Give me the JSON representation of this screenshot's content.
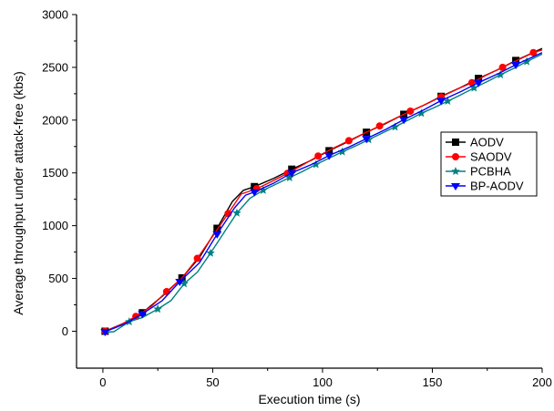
{
  "chart_data": {
    "type": "line",
    "title": "",
    "xlabel": "Execution time (s)",
    "ylabel": "Average throughput under attack-free (kbs)",
    "xlim": [
      -12,
      200
    ],
    "ylim": [
      -350,
      3000
    ],
    "xticks": [
      0,
      50,
      100,
      150,
      200
    ],
    "yticks": [
      0,
      500,
      1000,
      1500,
      2000,
      2500,
      3000
    ],
    "grid": false,
    "legend_position": "right",
    "series": [
      {
        "name": "AODV",
        "color": "#000000",
        "marker": "square",
        "points": [
          [
            1,
            0
          ],
          [
            18,
            175
          ],
          [
            36,
            505
          ],
          [
            52,
            975
          ],
          [
            69,
            1370
          ],
          [
            86,
            1535
          ],
          [
            103,
            1710
          ],
          [
            120,
            1885
          ],
          [
            137,
            2055
          ],
          [
            154,
            2225
          ],
          [
            171,
            2395
          ],
          [
            188,
            2565
          ]
        ],
        "line": [
          [
            1,
            0
          ],
          [
            10,
            80
          ],
          [
            18,
            175
          ],
          [
            27,
            330
          ],
          [
            36,
            505
          ],
          [
            44,
            700
          ],
          [
            52,
            975
          ],
          [
            59,
            1230
          ],
          [
            64,
            1335
          ],
          [
            69,
            1370
          ],
          [
            78,
            1450
          ],
          [
            86,
            1535
          ],
          [
            95,
            1620
          ],
          [
            103,
            1710
          ],
          [
            112,
            1800
          ],
          [
            120,
            1885
          ],
          [
            129,
            1970
          ],
          [
            137,
            2055
          ],
          [
            146,
            2140
          ],
          [
            154,
            2225
          ],
          [
            163,
            2310
          ],
          [
            171,
            2395
          ],
          [
            180,
            2480
          ],
          [
            188,
            2565
          ],
          [
            200,
            2680
          ]
        ]
      },
      {
        "name": "SAODV",
        "color": "#ff0000",
        "marker": "circle",
        "points": [
          [
            1,
            0
          ],
          [
            15,
            140
          ],
          [
            29,
            375
          ],
          [
            43,
            690
          ],
          [
            57,
            1115
          ],
          [
            70,
            1350
          ],
          [
            84,
            1495
          ],
          [
            98,
            1660
          ],
          [
            112,
            1805
          ],
          [
            126,
            1945
          ],
          [
            140,
            2085
          ],
          [
            154,
            2220
          ],
          [
            168,
            2355
          ],
          [
            182,
            2500
          ],
          [
            196,
            2640
          ]
        ],
        "line": [
          [
            1,
            0
          ],
          [
            8,
            60
          ],
          [
            15,
            140
          ],
          [
            22,
            235
          ],
          [
            29,
            375
          ],
          [
            36,
            505
          ],
          [
            43,
            690
          ],
          [
            50,
            900
          ],
          [
            57,
            1115
          ],
          [
            63,
            1300
          ],
          [
            70,
            1350
          ],
          [
            77,
            1420
          ],
          [
            84,
            1495
          ],
          [
            91,
            1575
          ],
          [
            98,
            1660
          ],
          [
            105,
            1735
          ],
          [
            112,
            1805
          ],
          [
            119,
            1875
          ],
          [
            126,
            1945
          ],
          [
            133,
            2015
          ],
          [
            140,
            2085
          ],
          [
            147,
            2150
          ],
          [
            154,
            2220
          ],
          [
            161,
            2290
          ],
          [
            168,
            2355
          ],
          [
            175,
            2430
          ],
          [
            182,
            2500
          ],
          [
            189,
            2570
          ],
          [
            196,
            2640
          ],
          [
            200,
            2665
          ]
        ]
      },
      {
        "name": "PCBHA",
        "color": "#008080",
        "marker": "star",
        "points": [
          [
            12,
            90
          ],
          [
            25,
            210
          ],
          [
            37,
            450
          ],
          [
            49,
            740
          ],
          [
            61,
            1120
          ],
          [
            73,
            1335
          ],
          [
            85,
            1455
          ],
          [
            97,
            1580
          ],
          [
            109,
            1700
          ],
          [
            121,
            1815
          ],
          [
            133,
            1935
          ],
          [
            145,
            2065
          ],
          [
            157,
            2180
          ],
          [
            169,
            2305
          ],
          [
            181,
            2430
          ],
          [
            193,
            2555
          ]
        ],
        "line": [
          [
            1,
            -10
          ],
          [
            5,
            -5
          ],
          [
            12,
            90
          ],
          [
            18,
            130
          ],
          [
            25,
            210
          ],
          [
            31,
            290
          ],
          [
            37,
            450
          ],
          [
            43,
            560
          ],
          [
            49,
            740
          ],
          [
            55,
            930
          ],
          [
            61,
            1120
          ],
          [
            67,
            1260
          ],
          [
            73,
            1335
          ],
          [
            79,
            1395
          ],
          [
            85,
            1455
          ],
          [
            91,
            1515
          ],
          [
            97,
            1580
          ],
          [
            103,
            1640
          ],
          [
            109,
            1700
          ],
          [
            115,
            1755
          ],
          [
            121,
            1815
          ],
          [
            127,
            1875
          ],
          [
            133,
            1935
          ],
          [
            139,
            2000
          ],
          [
            145,
            2065
          ],
          [
            151,
            2120
          ],
          [
            157,
            2180
          ],
          [
            163,
            2240
          ],
          [
            169,
            2305
          ],
          [
            175,
            2365
          ],
          [
            181,
            2430
          ],
          [
            187,
            2490
          ],
          [
            193,
            2555
          ],
          [
            200,
            2625
          ]
        ]
      },
      {
        "name": "BP-AODV",
        "color": "#0000ff",
        "marker": "triangle-down",
        "points": [
          [
            1,
            -5
          ],
          [
            18,
            165
          ],
          [
            35,
            470
          ],
          [
            52,
            920
          ],
          [
            69,
            1320
          ],
          [
            86,
            1500
          ],
          [
            103,
            1665
          ],
          [
            120,
            1825
          ],
          [
            137,
            2005
          ],
          [
            154,
            2185
          ],
          [
            171,
            2355
          ],
          [
            188,
            2525
          ]
        ],
        "line": [
          [
            1,
            -5
          ],
          [
            10,
            70
          ],
          [
            18,
            165
          ],
          [
            27,
            290
          ],
          [
            35,
            470
          ],
          [
            44,
            650
          ],
          [
            52,
            920
          ],
          [
            60,
            1170
          ],
          [
            65,
            1290
          ],
          [
            69,
            1320
          ],
          [
            78,
            1405
          ],
          [
            86,
            1500
          ],
          [
            95,
            1580
          ],
          [
            103,
            1665
          ],
          [
            112,
            1745
          ],
          [
            120,
            1825
          ],
          [
            129,
            1915
          ],
          [
            137,
            2005
          ],
          [
            146,
            2095
          ],
          [
            154,
            2185
          ],
          [
            163,
            2270
          ],
          [
            171,
            2355
          ],
          [
            180,
            2440
          ],
          [
            188,
            2525
          ],
          [
            200,
            2640
          ]
        ]
      }
    ]
  }
}
